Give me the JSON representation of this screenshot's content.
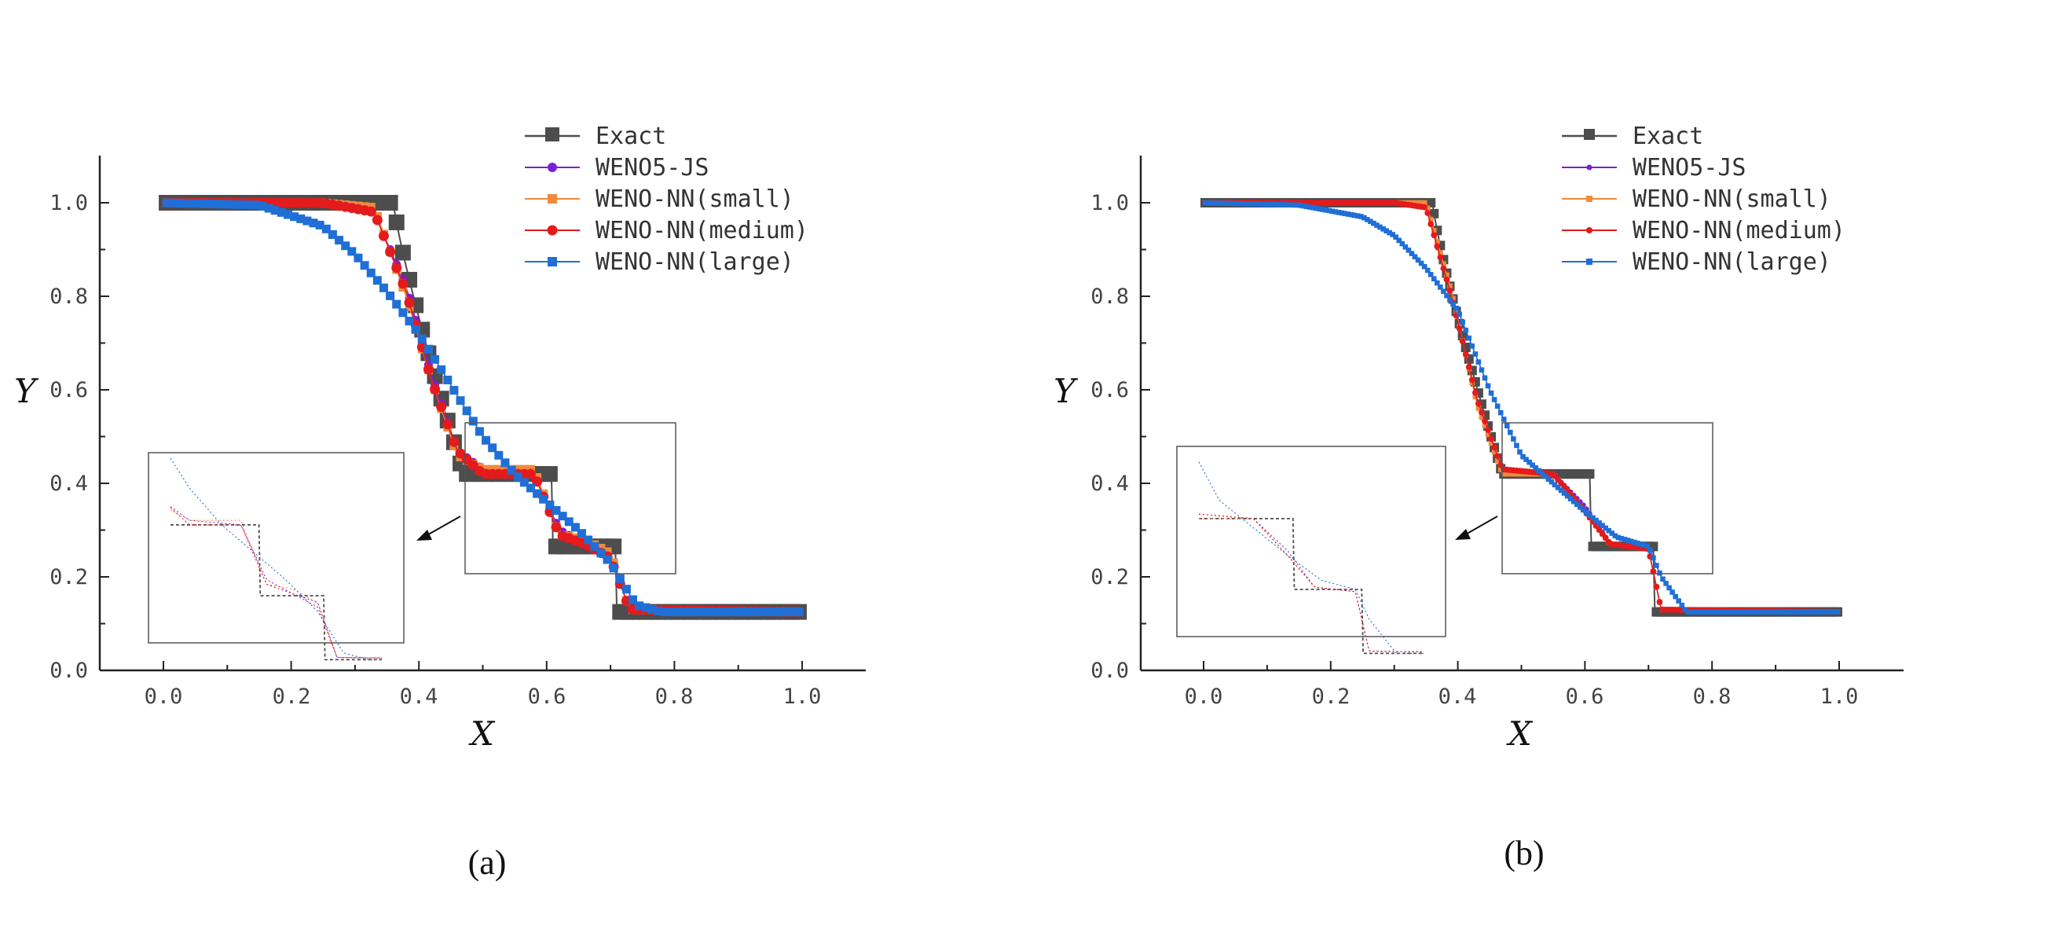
{
  "figure": {
    "panels": [
      {
        "caption": "(a)",
        "xlabel": "X",
        "ylabel": "Y",
        "xticks": [
          "0.0",
          "0.2",
          "0.4",
          "0.6",
          "0.8",
          "1.0"
        ],
        "yticks": [
          "0.0",
          "0.2",
          "0.4",
          "0.6",
          "0.8",
          "1.0"
        ],
        "legend": [
          "Exact",
          "WENO5-JS",
          "WENO-NN(small)",
          "WENO-NN(medium)",
          "WENO-NN(large)"
        ]
      },
      {
        "caption": "(b)",
        "xlabel": "X",
        "ylabel": "Y",
        "xticks": [
          "0.0",
          "0.2",
          "0.4",
          "0.6",
          "0.8",
          "1.0"
        ],
        "yticks": [
          "0.0",
          "0.2",
          "0.4",
          "0.6",
          "0.8",
          "1.0"
        ],
        "legend": [
          "Exact",
          "WENO5-JS",
          "WENO-NN(small)",
          "WENO-NN(medium)",
          "WENO-NN(large)"
        ]
      }
    ]
  },
  "chart_data": [
    {
      "type": "line",
      "title": "",
      "caption": "(a)",
      "xlabel": "X",
      "ylabel": "Y",
      "xlim": [
        -0.1,
        1.1
      ],
      "ylim": [
        0.0,
        1.1
      ],
      "legend_position": "top-right",
      "inset": "zoomed view of the region X 0.47-0.80, Y 0.21-0.53, with an arrow pointing to it",
      "exact": {
        "rho_left": 1.0,
        "head": 0.36,
        "tail": 0.47,
        "rho_plateau1": 0.42,
        "contact": 0.61,
        "rho_plateau2": 0.265,
        "shock": 0.71,
        "rho_right": 0.125
      },
      "series": [
        {
          "name": "Exact",
          "color": "#4d4d4d",
          "marker": "square",
          "x": [
            0.0,
            0.36,
            0.4,
            0.44,
            0.47,
            0.61,
            0.61,
            0.71,
            0.71,
            1.0
          ],
          "y": [
            1.0,
            1.0,
            0.75,
            0.54,
            0.42,
            0.42,
            0.265,
            0.265,
            0.125,
            0.125
          ]
        },
        {
          "name": "WENO5-JS",
          "color": "#7b1fd8",
          "marker": "circle",
          "x": [
            0.0,
            0.25,
            0.33,
            0.38,
            0.42,
            0.46,
            0.5,
            0.58,
            0.62,
            0.66,
            0.7,
            0.73,
            1.0
          ],
          "y": [
            1.0,
            1.0,
            0.98,
            0.82,
            0.63,
            0.47,
            0.43,
            0.42,
            0.3,
            0.27,
            0.25,
            0.13,
            0.125
          ]
        },
        {
          "name": "WENO-NN(small)",
          "color": "#f08a3c",
          "marker": "square",
          "x": [
            0.0,
            0.25,
            0.33,
            0.38,
            0.42,
            0.46,
            0.5,
            0.58,
            0.62,
            0.66,
            0.7,
            0.73,
            1.0
          ],
          "y": [
            1.0,
            1.0,
            0.99,
            0.8,
            0.62,
            0.46,
            0.43,
            0.43,
            0.29,
            0.28,
            0.25,
            0.13,
            0.125
          ]
        },
        {
          "name": "WENO-NN(medium)",
          "color": "#e41a1c",
          "marker": "circle",
          "x": [
            0.0,
            0.25,
            0.33,
            0.38,
            0.42,
            0.46,
            0.5,
            0.58,
            0.62,
            0.66,
            0.7,
            0.73,
            1.0
          ],
          "y": [
            1.0,
            1.0,
            0.98,
            0.81,
            0.62,
            0.47,
            0.42,
            0.42,
            0.29,
            0.27,
            0.24,
            0.13,
            0.125
          ]
        },
        {
          "name": "WENO-NN(large)",
          "color": "#1f6fd6",
          "marker": "square",
          "x": [
            0.0,
            0.15,
            0.25,
            0.3,
            0.35,
            0.4,
            0.45,
            0.5,
            0.55,
            0.6,
            0.65,
            0.7,
            0.74,
            0.78,
            1.0
          ],
          "y": [
            1.0,
            0.995,
            0.95,
            0.89,
            0.81,
            0.72,
            0.61,
            0.5,
            0.42,
            0.36,
            0.3,
            0.23,
            0.14,
            0.125,
            0.125
          ]
        }
      ]
    },
    {
      "type": "line",
      "title": "",
      "caption": "(b)",
      "xlabel": "X",
      "ylabel": "Y",
      "xlim": [
        -0.1,
        1.1
      ],
      "ylim": [
        0.0,
        1.1
      ],
      "legend_position": "top-right",
      "inset": "zoomed view of the region X 0.47-0.80, Y 0.21-0.53, with an arrow pointing to it",
      "exact": {
        "rho_left": 1.0,
        "head": 0.36,
        "tail": 0.47,
        "rho_plateau1": 0.42,
        "contact": 0.61,
        "rho_plateau2": 0.265,
        "shock": 0.71,
        "rho_right": 0.125
      },
      "series": [
        {
          "name": "Exact",
          "color": "#4d4d4d",
          "marker": "square",
          "x": [
            0.0,
            0.36,
            0.4,
            0.44,
            0.47,
            0.61,
            0.61,
            0.71,
            0.71,
            1.0
          ],
          "y": [
            1.0,
            1.0,
            0.75,
            0.54,
            0.42,
            0.42,
            0.265,
            0.265,
            0.125,
            0.125
          ]
        },
        {
          "name": "WENO5-JS",
          "color": "#7b1fd8",
          "marker": "circle",
          "x": [
            0.0,
            0.3,
            0.35,
            0.39,
            0.43,
            0.47,
            0.55,
            0.6,
            0.64,
            0.7,
            0.72,
            1.0
          ],
          "y": [
            1.0,
            1.0,
            0.99,
            0.8,
            0.58,
            0.43,
            0.42,
            0.35,
            0.27,
            0.26,
            0.13,
            0.125
          ]
        },
        {
          "name": "WENO-NN(small)",
          "color": "#f08a3c",
          "marker": "square",
          "x": [
            0.0,
            0.3,
            0.35,
            0.39,
            0.43,
            0.47,
            0.55,
            0.6,
            0.64,
            0.7,
            0.72,
            1.0
          ],
          "y": [
            1.0,
            1.0,
            1.0,
            0.81,
            0.57,
            0.42,
            0.42,
            0.34,
            0.27,
            0.26,
            0.13,
            0.125
          ]
        },
        {
          "name": "WENO-NN(medium)",
          "color": "#e41a1c",
          "marker": "circle",
          "x": [
            0.0,
            0.3,
            0.35,
            0.39,
            0.43,
            0.47,
            0.55,
            0.6,
            0.64,
            0.7,
            0.72,
            1.0
          ],
          "y": [
            1.0,
            1.0,
            0.99,
            0.8,
            0.58,
            0.43,
            0.42,
            0.34,
            0.27,
            0.26,
            0.13,
            0.125
          ]
        },
        {
          "name": "WENO-NN(large)",
          "color": "#1f6fd6",
          "marker": "square",
          "x": [
            0.0,
            0.15,
            0.25,
            0.3,
            0.35,
            0.4,
            0.45,
            0.5,
            0.55,
            0.6,
            0.65,
            0.7,
            0.72,
            0.76,
            1.0
          ],
          "y": [
            1.0,
            0.995,
            0.97,
            0.93,
            0.86,
            0.77,
            0.6,
            0.46,
            0.4,
            0.34,
            0.285,
            0.265,
            0.2,
            0.125,
            0.125
          ]
        }
      ]
    }
  ]
}
